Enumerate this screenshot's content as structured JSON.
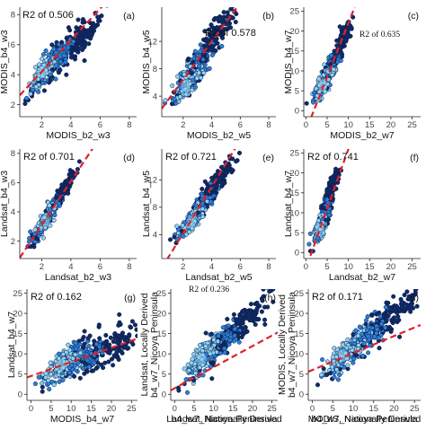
{
  "figure": {
    "footer_labels": [
      "b4_w7_Nicoya Peninsula",
      "b4_w7_Nicoya Peninsula"
    ]
  },
  "colors": {
    "regression_line": "#e0202a",
    "point_outline": "#0b1f4a",
    "density_low": "#0f2a66",
    "density_mid": "#2f7fd6",
    "density_high": "#8fd3f4"
  },
  "chart_data": [
    {
      "type": "scatter",
      "panel_tag": "(a)",
      "annotation": "R2 of 0.506",
      "annotation_font": "sans",
      "xlabel": "MODIS_b2_w3",
      "ylabel": "MODIS_b4_w3",
      "xlim": [
        0.5,
        8.5
      ],
      "ylim": [
        1.2,
        8.5
      ],
      "xticks": [
        2,
        4,
        6,
        8
      ],
      "yticks": [
        2,
        4,
        6,
        8
      ],
      "regression": {
        "slope": 1.05,
        "intercept": 2.1
      },
      "cloud": {
        "x0": 1.6,
        "y0": 3.8,
        "corner_a": [
          0.6,
          1.8
        ],
        "corner_b": [
          5.3,
          6.8
        ],
        "spread": 0.55
      }
    },
    {
      "type": "scatter",
      "panel_tag": "(b)",
      "annotation": "R2 of 0.578",
      "annotation_font": "sans",
      "xlabel": "MODIS_b2_w5",
      "ylabel": "MODIS_b4_w5",
      "xlim": [
        0.5,
        8.5
      ],
      "ylim": [
        1,
        17
      ],
      "xticks": [
        2,
        4,
        6,
        8
      ],
      "yticks": [
        4,
        8,
        12
      ],
      "regression": {
        "slope": 2.8,
        "intercept": 0.8
      },
      "cloud": {
        "x0": 1.8,
        "y0": 4.2,
        "corner_a": [
          0.9,
          2.2
        ],
        "corner_b": [
          4.8,
          14.8
        ],
        "spread": 1.3
      }
    },
    {
      "type": "scatter",
      "panel_tag": "(c)",
      "annotation": "R2 of 0.635",
      "annotation_font": "serif",
      "xlabel": "MODIS_b2_w7",
      "ylabel": "MODIS_b4_w7",
      "xlim": [
        -0.5,
        27
      ],
      "ylim": [
        -1.5,
        26
      ],
      "xticks": [
        0,
        5,
        10,
        15,
        20,
        25
      ],
      "yticks": [
        0,
        5,
        10,
        15,
        20,
        25
      ],
      "regression": {
        "slope": 2.7,
        "intercept": -5
      },
      "cloud": {
        "x0": 3.2,
        "y0": 4.5,
        "corner_a": [
          1.2,
          0.8
        ],
        "corner_b": [
          9.2,
          19.5
        ],
        "spread": 2.2
      }
    },
    {
      "type": "scatter",
      "panel_tag": "(d)",
      "annotation": "R2 of 0.701",
      "annotation_font": "sans",
      "xlabel": "Landsat_b2_w3",
      "ylabel": "Landsat_b4_w3",
      "xlim": [
        0.5,
        8.5
      ],
      "ylim": [
        0.8,
        8.3
      ],
      "xticks": [
        2,
        4,
        6,
        8
      ],
      "yticks": [
        2,
        4,
        6,
        8
      ],
      "regression": {
        "slope": 1.5,
        "intercept": 0.1
      },
      "cloud": {
        "x0": 2.1,
        "y0": 3.2,
        "corner_a": [
          1.0,
          1.4
        ],
        "corner_b": [
          3.6,
          5.6
        ],
        "spread": 0.55
      }
    },
    {
      "type": "scatter",
      "panel_tag": "(e)",
      "annotation": "R2 of 0.721",
      "annotation_font": "sans",
      "xlabel": "Landsat_b2_w5",
      "ylabel": "Landsat_b4_w5",
      "xlim": [
        0.5,
        8.5
      ],
      "ylim": [
        0.5,
        16.5
      ],
      "xticks": [
        2,
        4,
        6,
        8
      ],
      "yticks": [
        4,
        8,
        12
      ],
      "regression": {
        "slope": 3.4,
        "intercept": -2.6
      },
      "cloud": {
        "x0": 2.3,
        "y0": 5.0,
        "corner_a": [
          1.3,
          2.5
        ],
        "corner_b": [
          4.7,
          12.8
        ],
        "spread": 1.0
      }
    },
    {
      "type": "scatter",
      "panel_tag": "(f)",
      "annotation": "R2 of 0.741",
      "annotation_font": "sans",
      "xlabel": "Landsat_b2_w7",
      "ylabel": "Landsat_b4_w7",
      "xlim": [
        -0.5,
        27
      ],
      "ylim": [
        -1.5,
        26
      ],
      "xticks": [
        0,
        5,
        10,
        15,
        20,
        25
      ],
      "yticks": [
        0,
        5,
        10,
        15,
        20,
        25
      ],
      "regression": {
        "slope": 3.0,
        "intercept": -4
      },
      "cloud": {
        "x0": 2.9,
        "y0": 4.0,
        "corner_a": [
          1.5,
          0.6
        ],
        "corner_b": [
          6.5,
          17.8
        ],
        "spread": 1.7
      }
    },
    {
      "type": "scatter",
      "panel_tag": "(g)",
      "annotation": "R2 of 0.162",
      "annotation_font": "sans",
      "xlabel": "MODIS_b4_w7",
      "ylabel": "Landsat_b4_w7",
      "xlim": [
        -1,
        26.5
      ],
      "ylim": [
        -1.5,
        26
      ],
      "xticks": [
        0,
        5,
        10,
        15,
        20,
        25
      ],
      "yticks": [
        0,
        5,
        10,
        15,
        20,
        25
      ],
      "regression": {
        "slope": 0.35,
        "intercept": 4.5
      },
      "cloud": {
        "x0": 5.5,
        "y0": 6.5,
        "corner_a": [
          1.0,
          0.5
        ],
        "corner_b": [
          23.0,
          12.5
        ],
        "spread": 3.0
      }
    },
    {
      "type": "scatter",
      "panel_tag": "(h)",
      "annotation": "R2 of 0.236",
      "annotation_font": "serif",
      "xlabel": "Landsat, Nationally Derived",
      "ylabel": "Landsat, Locally Derived",
      "ylabel2": "b4_w7_Nicoya Peninsula",
      "xlim": [
        -1,
        26.5
      ],
      "ylim": [
        -1.5,
        26
      ],
      "xticks": [
        0,
        5,
        10,
        15,
        20,
        25
      ],
      "yticks": [
        0,
        5,
        10,
        15,
        20,
        25
      ],
      "regression": {
        "slope": 0.52,
        "intercept": 1.5
      },
      "cloud": {
        "x0": 5.0,
        "y0": 7.0,
        "corner_a": [
          0.8,
          0.4
        ],
        "corner_b": [
          21.5,
          21.0
        ],
        "spread": 3.4
      }
    },
    {
      "type": "scatter",
      "panel_tag": "(i)",
      "annotation": "R2 of 0.171",
      "annotation_font": "sans",
      "xlabel": "MODIS, Nationally Derived",
      "ylabel": "MODIS, Locally Derived",
      "ylabel2": "b4_w7_Nicoya Peninsula",
      "xlim": [
        -1,
        26.5
      ],
      "ylim": [
        -1.5,
        26
      ],
      "xticks": [
        0,
        5,
        10,
        15,
        20,
        25
      ],
      "yticks": [
        0,
        5,
        10,
        15,
        20,
        25
      ],
      "regression": {
        "slope": 0.42,
        "intercept": 6.0
      },
      "cloud": {
        "x0": 5.5,
        "y0": 8.0,
        "corner_a": [
          0.8,
          1.5
        ],
        "corner_b": [
          22.5,
          21.5
        ],
        "spread": 3.6
      }
    }
  ]
}
